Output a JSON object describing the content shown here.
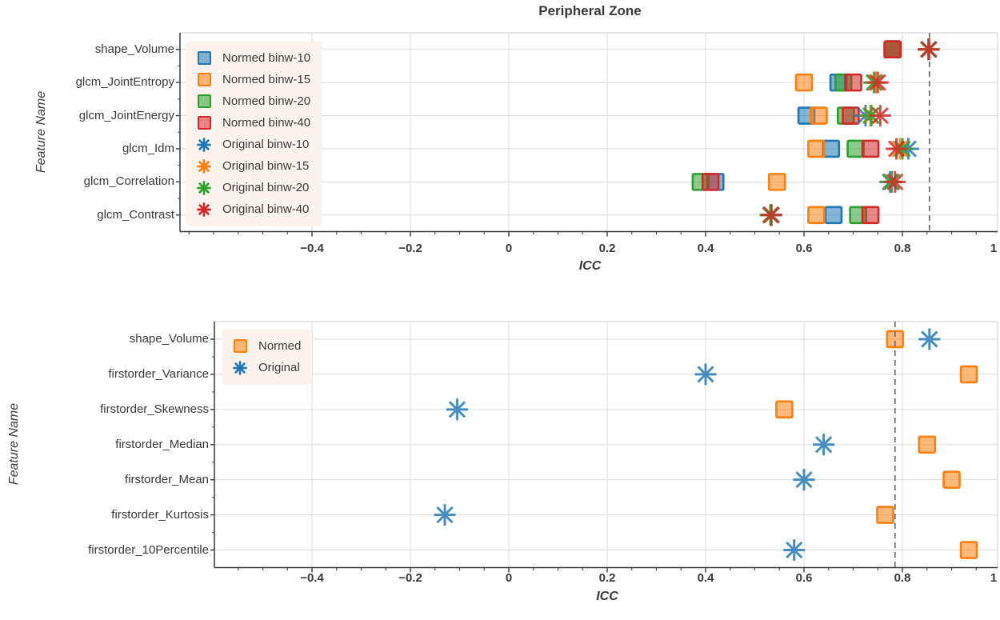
{
  "colors": {
    "blue": "#1f77b4",
    "orange": "#ff7f0e",
    "green": "#2ca02c",
    "red": "#d62728",
    "text": "#3a3a3a",
    "spine_dark": "#3a3a3a",
    "spine_light": "#d6d6d6",
    "grid": "#dcdcdc",
    "dashed_line": "#737373",
    "legend_bg": "#fdf3ee"
  },
  "chart_data": [
    {
      "type": "scatter",
      "title": "Peripheral Zone",
      "xlabel": "ICC",
      "ylabel": "Feature Name",
      "xlim": [
        -0.668,
        0.998
      ],
      "x_ticks": [
        -0.4,
        -0.2,
        0,
        0.2,
        0.4,
        0.6,
        0.8,
        1
      ],
      "x_minor_step": 0.05,
      "grid": true,
      "legend_position": "upper left",
      "dashed_vline_x": 0.855,
      "categories": [
        "shape_Volume",
        "glcm_JointEntropy",
        "glcm_JointEnergy",
        "glcm_Idm",
        "glcm_Correlation",
        "glcm_Contrast"
      ],
      "series": [
        {
          "name": "Normed binw-10",
          "marker": "square",
          "color": "blue",
          "values": [
            0.78,
            0.67,
            0.605,
            0.655,
            0.42,
            0.66
          ]
        },
        {
          "name": "Normed binw-15",
          "marker": "square",
          "color": "orange",
          "values": [
            0.78,
            0.6,
            0.63,
            0.625,
            0.545,
            0.625
          ]
        },
        {
          "name": "Normed binw-20",
          "marker": "square",
          "color": "green",
          "values": [
            0.78,
            0.68,
            0.685,
            0.705,
            0.39,
            0.71
          ]
        },
        {
          "name": "Normed binw-40",
          "marker": "square",
          "color": "red",
          "values": [
            0.78,
            0.7,
            0.695,
            0.735,
            0.41,
            0.735
          ]
        },
        {
          "name": "Original binw-10",
          "marker": "star",
          "color": "blue",
          "values": [
            0.853,
            0.745,
            0.725,
            0.812,
            0.775,
            0.532
          ]
        },
        {
          "name": "Original binw-15",
          "marker": "star",
          "color": "orange",
          "values": [
            0.853,
            0.745,
            0.735,
            0.795,
            0.778,
            0.532
          ]
        },
        {
          "name": "Original binw-20",
          "marker": "star",
          "color": "green",
          "values": [
            0.853,
            0.742,
            0.737,
            0.8,
            0.778,
            0.532
          ]
        },
        {
          "name": "Original binw-40",
          "marker": "star",
          "color": "red",
          "values": [
            0.854,
            0.75,
            0.755,
            0.788,
            0.785,
            0.534
          ]
        }
      ]
    },
    {
      "type": "scatter",
      "title": "",
      "xlabel": "ICC",
      "ylabel": "Feature Name",
      "xlim": [
        -0.598,
        0.998
      ],
      "x_ticks": [
        -0.4,
        -0.2,
        0,
        0.2,
        0.4,
        0.6,
        0.8,
        1
      ],
      "x_minor_step": 0.05,
      "grid": true,
      "legend_position": "upper left",
      "dashed_vline_x": 0.785,
      "categories": [
        "shape_Volume",
        "firstorder_Variance",
        "firstorder_Skewness",
        "firstorder_Median",
        "firstorder_Mean",
        "firstorder_Kurtosis",
        "firstorder_10Percentile"
      ],
      "series": [
        {
          "name": "Normed",
          "marker": "square",
          "color": "orange",
          "values": [
            0.785,
            0.935,
            0.56,
            0.85,
            0.9,
            0.765,
            0.935
          ]
        },
        {
          "name": "Original",
          "marker": "star",
          "color": "blue",
          "values": [
            0.855,
            0.4,
            -0.105,
            0.64,
            0.6,
            -0.13,
            0.58
          ]
        }
      ]
    }
  ]
}
